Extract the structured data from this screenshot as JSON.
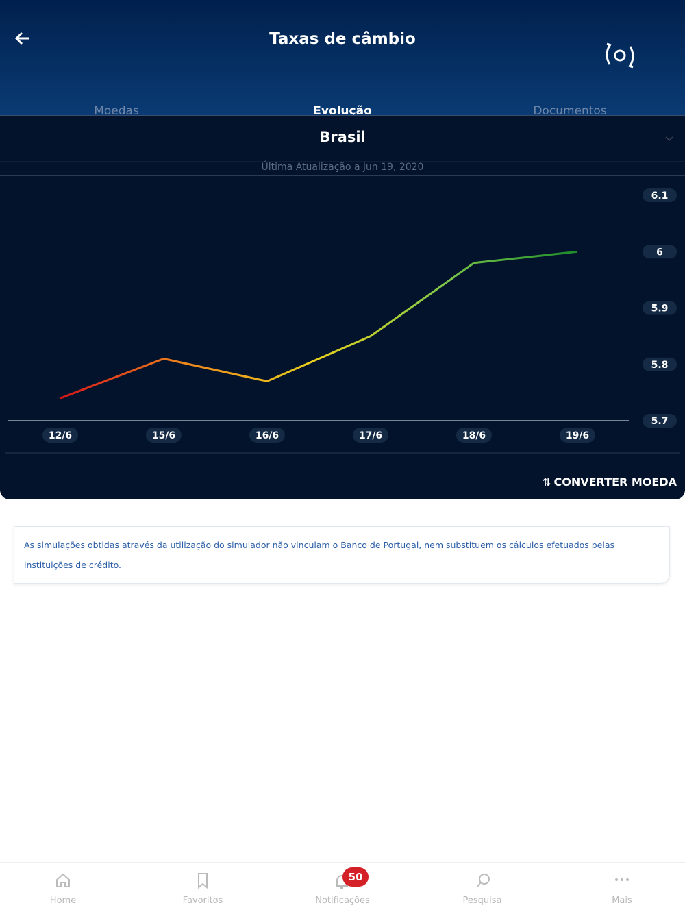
{
  "header": {
    "title": "Taxas de câmbio"
  },
  "tabs": [
    "Moedas",
    "Evolução",
    "Documentos"
  ],
  "country": "Brasil",
  "updated": "Última Atualização a jun 19, 2020",
  "chart_data": {
    "type": "line",
    "categories": [
      "12/6",
      "15/6",
      "16/6",
      "17/6",
      "18/6",
      "19/6"
    ],
    "values": [
      5.74,
      5.81,
      5.77,
      5.85,
      5.98,
      6.0
    ],
    "ylim": [
      5.7,
      6.1
    ],
    "yticks": [
      5.7,
      5.8,
      5.9,
      6,
      6.1
    ],
    "colors": [
      "#d8161b",
      "#f08a1c",
      "#e9d21e",
      "#7cc84a",
      "#1d8a2a"
    ]
  },
  "convert": "CONVERTER MOEDA",
  "disclaimer": "As simulações obtidas através da utilização do simulador não vinculam o Banco de Portugal, nem substituem os cálculos efetuados pelas instituições de crédito.",
  "nav": [
    "Home",
    "Favoritos",
    "Notificações",
    "Pesquisa",
    "Mais"
  ],
  "badge": 50
}
